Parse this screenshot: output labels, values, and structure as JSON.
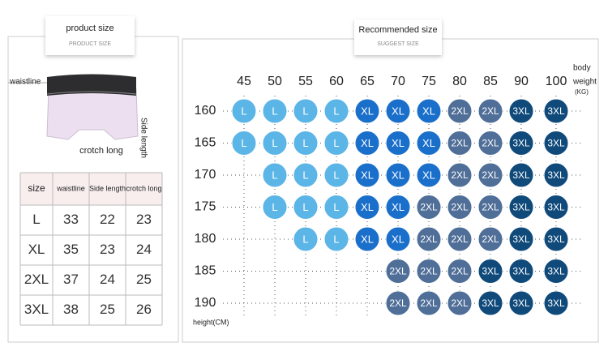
{
  "product": {
    "title": "product size",
    "subtitle": "PRODUCT SIZE",
    "waist_label": "waistline",
    "side_label": "Side length",
    "crotch_label": "crotch long",
    "table": {
      "header": [
        "size",
        "waistline",
        "Side length",
        "crotch long"
      ],
      "rows": [
        [
          "L",
          33,
          22,
          23
        ],
        [
          "XL",
          35,
          23,
          24
        ],
        [
          "2XL",
          37,
          24,
          25
        ],
        [
          "3XL",
          38,
          25,
          26
        ]
      ]
    }
  },
  "grid": {
    "title": "Recommended size",
    "subtitle": "SUGGEST SIZE",
    "weight_label": [
      "body",
      "weight",
      "(KG)"
    ],
    "height_label": "height(CM)",
    "weights": [
      45,
      50,
      55,
      60,
      65,
      70,
      75,
      80,
      85,
      90,
      100
    ],
    "heights": [
      160,
      165,
      170,
      175,
      180,
      185,
      190
    ],
    "size_colors": {
      "L": "#5bb5e6",
      "XL": "#1a6fcb",
      "2XL": "#4f6e98",
      "3XL": "#0f4a7b"
    },
    "rows": [
      [
        "L",
        "L",
        "L",
        "L",
        "XL",
        "XL",
        "XL",
        "2XL",
        "2XL",
        "3XL",
        "3XL"
      ],
      [
        "L",
        "L",
        "L",
        "L",
        "XL",
        "XL",
        "XL",
        "2XL",
        "2XL",
        "3XL",
        "3XL"
      ],
      [
        null,
        "L",
        "L",
        "L",
        "XL",
        "XL",
        "XL",
        "2XL",
        "2XL",
        "3XL",
        "3XL"
      ],
      [
        null,
        "L",
        "L",
        "L",
        "XL",
        "XL",
        "2XL",
        "2XL",
        "2XL",
        "3XL",
        "3XL"
      ],
      [
        null,
        null,
        "L",
        "L",
        "XL",
        "XL",
        "2XL",
        "2XL",
        "2XL",
        "3XL",
        "3XL"
      ],
      [
        null,
        null,
        null,
        null,
        null,
        "2XL",
        "2XL",
        "2XL",
        "3XL",
        "3XL",
        "3XL"
      ],
      [
        null,
        null,
        null,
        null,
        null,
        "2XL",
        "2XL",
        "2XL",
        "3XL",
        "3XL",
        "3XL"
      ]
    ]
  }
}
